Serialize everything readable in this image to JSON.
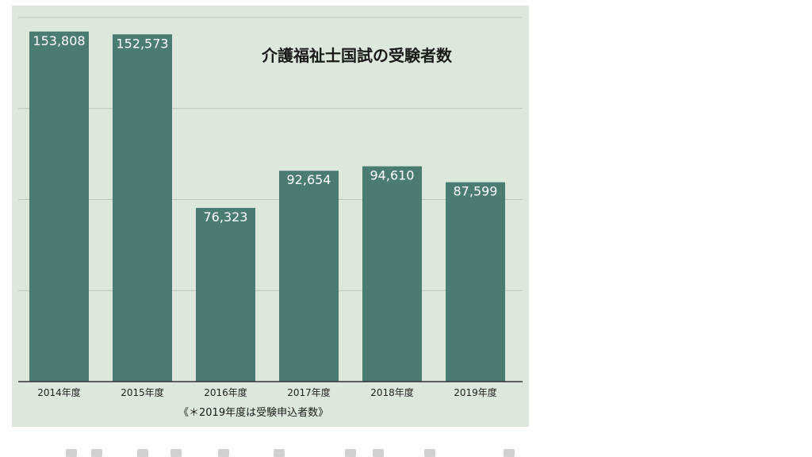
{
  "chart_data": {
    "type": "bar",
    "title": "介護福祉士国試の受験者数",
    "categories": [
      "2014年度",
      "2015年度",
      "2016年度",
      "2017年度",
      "2018年度",
      "2019年度"
    ],
    "values": [
      153808,
      152573,
      76323,
      92654,
      94610,
      87599
    ],
    "value_labels": [
      "153,808",
      "152,573",
      "76,323",
      "92,654",
      "94,610",
      "87,599"
    ],
    "ylim": [
      0,
      160000
    ],
    "grid": true,
    "footnote": "《＊2019年度は受験申込者数》",
    "colors": {
      "bar": "#4a7c72",
      "background": "#dce8dc",
      "grid": "#b9c7b9",
      "axis": "#333333"
    }
  }
}
